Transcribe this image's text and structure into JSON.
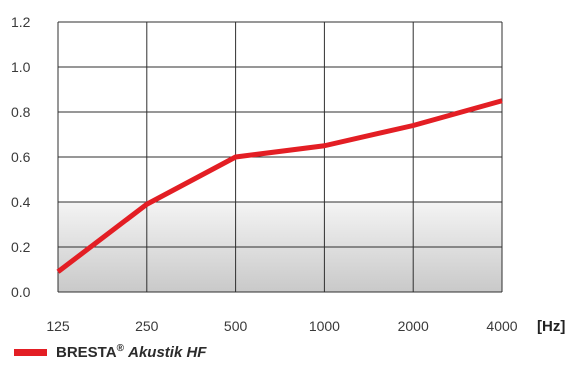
{
  "chart_data": {
    "type": "line",
    "x_unit_label": "[Hz]",
    "categories": [
      "125",
      "250",
      "500",
      "1000",
      "2000",
      "4000"
    ],
    "yticks": [
      "0.0",
      "0.2",
      "0.4",
      "0.6",
      "0.8",
      "1.0",
      "1.2"
    ],
    "ylim": [
      0,
      1.2
    ],
    "grid": true,
    "background": "shaded band from 0.0 to about 0.4",
    "legend_position": "bottom-left",
    "series": [
      {
        "name": "BRESTA",
        "name_mark": "®",
        "name_model": "Akustik HF",
        "color": "#e31e24",
        "values": [
          0.09,
          0.39,
          0.6,
          0.65,
          0.74,
          0.85
        ]
      }
    ]
  }
}
